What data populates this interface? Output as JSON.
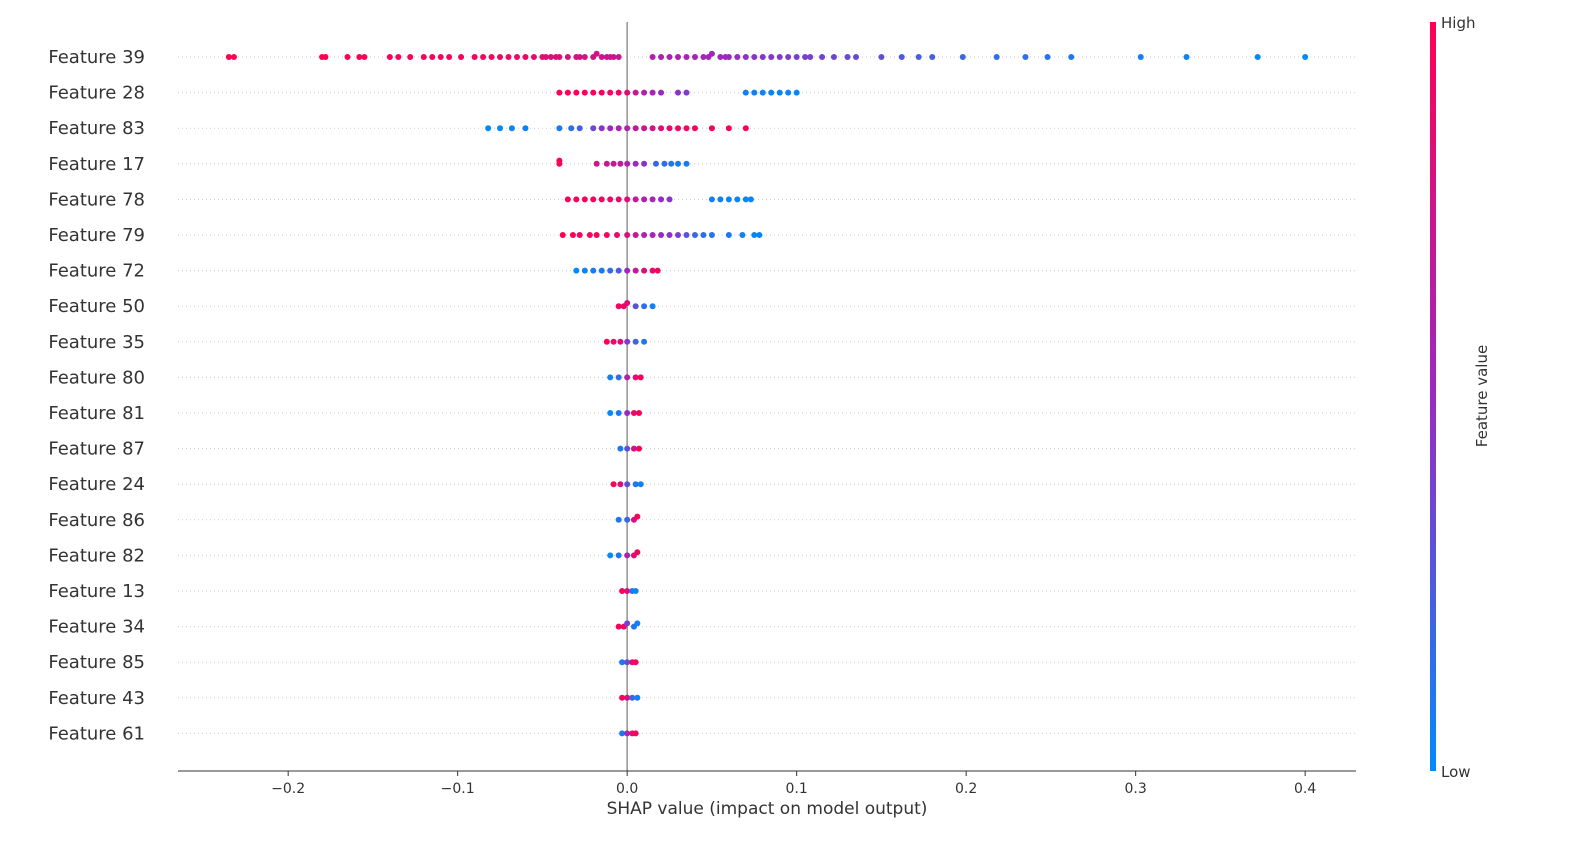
{
  "chart_data": {
    "type": "scatter",
    "subtype": "beeswarm",
    "title": "",
    "xlabel": "SHAP value (impact on model output)",
    "ylabel": "",
    "xlim": [
      -0.265,
      0.43
    ],
    "xticks": [
      -0.2,
      -0.1,
      0.0,
      0.1,
      0.2,
      0.3,
      0.4
    ],
    "xtick_labels": [
      "−0.2",
      "−0.1",
      "0.0",
      "0.1",
      "0.2",
      "0.3",
      "0.4"
    ],
    "grid": "dotted horizontal row guides",
    "zero_line": true,
    "colors": {
      "low": "#008bfb",
      "high": "#ff0052",
      "mid": "#9b29c1",
      "axis": "#333333",
      "zero_line": "#999999"
    },
    "colorbar": {
      "title": "Feature value",
      "high_label": "High",
      "low_label": "Low",
      "placement": "right"
    },
    "features": [
      {
        "name": "Feature 39",
        "samples": [
          [
            -0.235,
            1.0
          ],
          [
            -0.232,
            1.0
          ],
          [
            -0.18,
            1.0
          ],
          [
            -0.178,
            1.0
          ],
          [
            -0.165,
            1.0
          ],
          [
            -0.158,
            0.98
          ],
          [
            -0.155,
            0.98
          ],
          [
            -0.14,
            0.97
          ],
          [
            -0.135,
            0.97
          ],
          [
            -0.128,
            0.96
          ],
          [
            -0.12,
            0.96
          ],
          [
            -0.115,
            0.95
          ],
          [
            -0.11,
            0.95
          ],
          [
            -0.105,
            0.95
          ],
          [
            -0.098,
            0.94
          ],
          [
            -0.09,
            0.94
          ],
          [
            -0.085,
            0.93
          ],
          [
            -0.08,
            0.93
          ],
          [
            -0.075,
            0.92
          ],
          [
            -0.07,
            0.92
          ],
          [
            -0.065,
            0.9
          ],
          [
            -0.06,
            0.9
          ],
          [
            -0.055,
            0.88
          ],
          [
            -0.05,
            0.86
          ],
          [
            -0.048,
            0.86
          ],
          [
            -0.045,
            0.84
          ],
          [
            -0.042,
            0.84
          ],
          [
            -0.04,
            0.82
          ],
          [
            -0.035,
            0.8
          ],
          [
            -0.03,
            0.8
          ],
          [
            -0.028,
            0.78
          ],
          [
            -0.025,
            0.78
          ],
          [
            -0.02,
            0.76
          ],
          [
            -0.018,
            0.76
          ],
          [
            -0.015,
            0.74
          ],
          [
            -0.012,
            0.74
          ],
          [
            -0.01,
            0.72
          ],
          [
            -0.008,
            0.72
          ],
          [
            -0.005,
            0.7
          ],
          [
            0.015,
            0.6
          ],
          [
            0.02,
            0.6
          ],
          [
            0.025,
            0.58
          ],
          [
            0.03,
            0.58
          ],
          [
            0.035,
            0.56
          ],
          [
            0.04,
            0.56
          ],
          [
            0.045,
            0.54
          ],
          [
            0.048,
            0.54
          ],
          [
            0.05,
            0.52
          ],
          [
            0.055,
            0.52
          ],
          [
            0.058,
            0.5
          ],
          [
            0.06,
            0.5
          ],
          [
            0.065,
            0.48
          ],
          [
            0.07,
            0.46
          ],
          [
            0.075,
            0.45
          ],
          [
            0.08,
            0.44
          ],
          [
            0.085,
            0.43
          ],
          [
            0.09,
            0.42
          ],
          [
            0.095,
            0.41
          ],
          [
            0.1,
            0.4
          ],
          [
            0.105,
            0.39
          ],
          [
            0.108,
            0.38
          ],
          [
            0.115,
            0.36
          ],
          [
            0.122,
            0.35
          ],
          [
            0.13,
            0.34
          ],
          [
            0.135,
            0.33
          ],
          [
            0.15,
            0.3
          ],
          [
            0.162,
            0.26
          ],
          [
            0.172,
            0.24
          ],
          [
            0.18,
            0.22
          ],
          [
            0.198,
            0.18
          ],
          [
            0.218,
            0.16
          ],
          [
            0.235,
            0.14
          ],
          [
            0.248,
            0.12
          ],
          [
            0.262,
            0.1
          ],
          [
            0.303,
            0.06
          ],
          [
            0.33,
            0.04
          ],
          [
            0.372,
            0.02
          ],
          [
            0.4,
            0.0
          ]
        ]
      },
      {
        "name": "Feature 28",
        "samples": [
          [
            -0.04,
            1.0
          ],
          [
            -0.035,
            0.98
          ],
          [
            -0.03,
            0.97
          ],
          [
            -0.025,
            0.96
          ],
          [
            -0.02,
            0.95
          ],
          [
            -0.015,
            0.94
          ],
          [
            -0.01,
            0.92
          ],
          [
            -0.005,
            0.9
          ],
          [
            0.0,
            0.85
          ],
          [
            0.005,
            0.7
          ],
          [
            0.01,
            0.6
          ],
          [
            0.015,
            0.55
          ],
          [
            0.02,
            0.5
          ],
          [
            0.03,
            0.45
          ],
          [
            0.035,
            0.42
          ],
          [
            0.07,
            0.05
          ],
          [
            0.075,
            0.05
          ],
          [
            0.08,
            0.04
          ],
          [
            0.085,
            0.04
          ],
          [
            0.09,
            0.03
          ],
          [
            0.095,
            0.03
          ],
          [
            0.1,
            0.02
          ]
        ]
      },
      {
        "name": "Feature 83",
        "samples": [
          [
            -0.082,
            0.0
          ],
          [
            -0.075,
            0.02
          ],
          [
            -0.068,
            0.04
          ],
          [
            -0.06,
            0.05
          ],
          [
            -0.04,
            0.1
          ],
          [
            -0.033,
            0.14
          ],
          [
            -0.028,
            0.2
          ],
          [
            -0.02,
            0.35
          ],
          [
            -0.015,
            0.45
          ],
          [
            -0.01,
            0.5
          ],
          [
            -0.005,
            0.55
          ],
          [
            0.0,
            0.6
          ],
          [
            0.005,
            0.7
          ],
          [
            0.01,
            0.75
          ],
          [
            0.015,
            0.8
          ],
          [
            0.02,
            0.85
          ],
          [
            0.025,
            0.88
          ],
          [
            0.03,
            0.9
          ],
          [
            0.035,
            0.92
          ],
          [
            0.04,
            0.95
          ],
          [
            0.05,
            0.97
          ],
          [
            0.06,
            0.98
          ],
          [
            0.07,
            1.0
          ]
        ]
      },
      {
        "name": "Feature 17",
        "samples": [
          [
            -0.04,
            1.0
          ],
          [
            -0.04,
            0.98
          ],
          [
            -0.018,
            0.75
          ],
          [
            -0.012,
            0.72
          ],
          [
            -0.008,
            0.68
          ],
          [
            -0.004,
            0.64
          ],
          [
            0.0,
            0.6
          ],
          [
            0.005,
            0.5
          ],
          [
            0.01,
            0.45
          ],
          [
            0.017,
            0.18
          ],
          [
            0.022,
            0.15
          ],
          [
            0.026,
            0.12
          ],
          [
            0.03,
            0.1
          ],
          [
            0.035,
            0.08
          ]
        ]
      },
      {
        "name": "Feature 78",
        "samples": [
          [
            -0.035,
            1.0
          ],
          [
            -0.03,
            0.98
          ],
          [
            -0.025,
            0.96
          ],
          [
            -0.02,
            0.95
          ],
          [
            -0.015,
            0.94
          ],
          [
            -0.01,
            0.92
          ],
          [
            -0.005,
            0.9
          ],
          [
            0.0,
            0.85
          ],
          [
            0.005,
            0.7
          ],
          [
            0.01,
            0.6
          ],
          [
            0.015,
            0.55
          ],
          [
            0.02,
            0.5
          ],
          [
            0.025,
            0.45
          ],
          [
            0.05,
            0.05
          ],
          [
            0.055,
            0.05
          ],
          [
            0.06,
            0.04
          ],
          [
            0.065,
            0.04
          ],
          [
            0.07,
            0.03
          ],
          [
            0.073,
            0.03
          ]
        ]
      },
      {
        "name": "Feature 79",
        "samples": [
          [
            -0.038,
            1.0
          ],
          [
            -0.032,
            0.98
          ],
          [
            -0.028,
            0.96
          ],
          [
            -0.022,
            0.95
          ],
          [
            -0.018,
            0.94
          ],
          [
            -0.012,
            0.92
          ],
          [
            -0.006,
            0.9
          ],
          [
            0.0,
            0.82
          ],
          [
            0.005,
            0.7
          ],
          [
            0.01,
            0.6
          ],
          [
            0.015,
            0.55
          ],
          [
            0.02,
            0.5
          ],
          [
            0.025,
            0.45
          ],
          [
            0.03,
            0.4
          ],
          [
            0.035,
            0.3
          ],
          [
            0.04,
            0.2
          ],
          [
            0.045,
            0.15
          ],
          [
            0.05,
            0.12
          ],
          [
            0.06,
            0.08
          ],
          [
            0.068,
            0.05
          ],
          [
            0.075,
            0.03
          ],
          [
            0.078,
            0.02
          ]
        ]
      },
      {
        "name": "Feature 72",
        "samples": [
          [
            -0.03,
            0.0
          ],
          [
            -0.025,
            0.05
          ],
          [
            -0.02,
            0.08
          ],
          [
            -0.015,
            0.1
          ],
          [
            -0.01,
            0.15
          ],
          [
            -0.005,
            0.25
          ],
          [
            0.0,
            0.5
          ],
          [
            0.005,
            0.7
          ],
          [
            0.01,
            0.8
          ],
          [
            0.015,
            0.9
          ],
          [
            0.018,
            0.95
          ]
        ]
      },
      {
        "name": "Feature 50",
        "samples": [
          [
            -0.005,
            0.95
          ],
          [
            -0.002,
            0.9
          ],
          [
            0.0,
            0.85
          ],
          [
            0.005,
            0.3
          ],
          [
            0.01,
            0.15
          ],
          [
            0.015,
            0.05
          ]
        ]
      },
      {
        "name": "Feature 35",
        "samples": [
          [
            -0.012,
            1.0
          ],
          [
            -0.008,
            0.9
          ],
          [
            -0.004,
            0.8
          ],
          [
            0.0,
            0.4
          ],
          [
            0.005,
            0.2
          ],
          [
            0.01,
            0.1
          ]
        ]
      },
      {
        "name": "Feature 80",
        "samples": [
          [
            -0.01,
            0.05
          ],
          [
            -0.005,
            0.15
          ],
          [
            0.0,
            0.6
          ],
          [
            0.005,
            0.9
          ],
          [
            0.008,
            0.95
          ]
        ]
      },
      {
        "name": "Feature 81",
        "samples": [
          [
            -0.01,
            0.0
          ],
          [
            -0.005,
            0.1
          ],
          [
            0.0,
            0.5
          ],
          [
            0.004,
            0.9
          ],
          [
            0.007,
            0.95
          ]
        ]
      },
      {
        "name": "Feature 87",
        "samples": [
          [
            -0.004,
            0.1
          ],
          [
            0.0,
            0.3
          ],
          [
            0.004,
            0.8
          ],
          [
            0.007,
            0.95
          ]
        ]
      },
      {
        "name": "Feature 24",
        "samples": [
          [
            -0.008,
            1.0
          ],
          [
            -0.004,
            0.8
          ],
          [
            0.0,
            0.3
          ],
          [
            0.005,
            0.1
          ],
          [
            0.008,
            0.05
          ]
        ]
      },
      {
        "name": "Feature 86",
        "samples": [
          [
            -0.005,
            0.1
          ],
          [
            0.0,
            0.2
          ],
          [
            0.004,
            0.8
          ],
          [
            0.006,
            0.95
          ]
        ]
      },
      {
        "name": "Feature 82",
        "samples": [
          [
            -0.01,
            0.0
          ],
          [
            -0.005,
            0.1
          ],
          [
            0.0,
            0.6
          ],
          [
            0.004,
            0.9
          ],
          [
            0.006,
            0.95
          ]
        ]
      },
      {
        "name": "Feature 13",
        "samples": [
          [
            -0.003,
            0.95
          ],
          [
            0.0,
            0.8
          ],
          [
            0.003,
            0.1
          ],
          [
            0.005,
            0.05
          ]
        ]
      },
      {
        "name": "Feature 34",
        "samples": [
          [
            -0.005,
            1.0
          ],
          [
            -0.002,
            0.9
          ],
          [
            0.0,
            0.4
          ],
          [
            0.004,
            0.1
          ],
          [
            0.006,
            0.05
          ]
        ]
      },
      {
        "name": "Feature 85",
        "samples": [
          [
            -0.003,
            0.1
          ],
          [
            0.0,
            0.3
          ],
          [
            0.003,
            0.9
          ],
          [
            0.005,
            0.95
          ]
        ]
      },
      {
        "name": "Feature 43",
        "samples": [
          [
            -0.003,
            0.95
          ],
          [
            0.0,
            0.8
          ],
          [
            0.003,
            0.2
          ],
          [
            0.006,
            0.05
          ]
        ]
      },
      {
        "name": "Feature 61",
        "samples": [
          [
            -0.003,
            0.1
          ],
          [
            0.0,
            0.5
          ],
          [
            0.003,
            0.9
          ],
          [
            0.005,
            0.95
          ]
        ]
      }
    ]
  }
}
